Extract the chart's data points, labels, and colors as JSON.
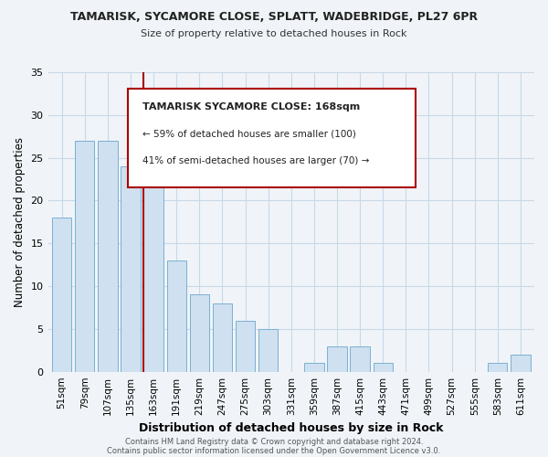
{
  "title": "TAMARISK, SYCAMORE CLOSE, SPLATT, WADEBRIDGE, PL27 6PR",
  "subtitle": "Size of property relative to detached houses in Rock",
  "xlabel": "Distribution of detached houses by size in Rock",
  "ylabel": "Number of detached properties",
  "bar_color": "#cfe0f0",
  "bar_edge_color": "#7ab0d4",
  "marker_color": "#aa0000",
  "categories": [
    "51sqm",
    "79sqm",
    "107sqm",
    "135sqm",
    "163sqm",
    "191sqm",
    "219sqm",
    "247sqm",
    "275sqm",
    "303sqm",
    "331sqm",
    "359sqm",
    "387sqm",
    "415sqm",
    "443sqm",
    "471sqm",
    "499sqm",
    "527sqm",
    "555sqm",
    "583sqm",
    "611sqm"
  ],
  "values": [
    18,
    27,
    27,
    24,
    23,
    13,
    9,
    8,
    6,
    5,
    0,
    1,
    3,
    3,
    1,
    0,
    0,
    0,
    0,
    1,
    2
  ],
  "ylim": [
    0,
    35
  ],
  "yticks": [
    0,
    5,
    10,
    15,
    20,
    25,
    30,
    35
  ],
  "marker_category": "163sqm",
  "annotation_title": "TAMARISK SYCAMORE CLOSE: 168sqm",
  "annotation_line1": "← 59% of detached houses are smaller (100)",
  "annotation_line2": "41% of semi-detached houses are larger (70) →",
  "footer1": "Contains HM Land Registry data © Crown copyright and database right 2024.",
  "footer2": "Contains public sector information licensed under the Open Government Licence v3.0.",
  "background_color": "#f0f4f8",
  "grid_color": "#c8d8e8"
}
